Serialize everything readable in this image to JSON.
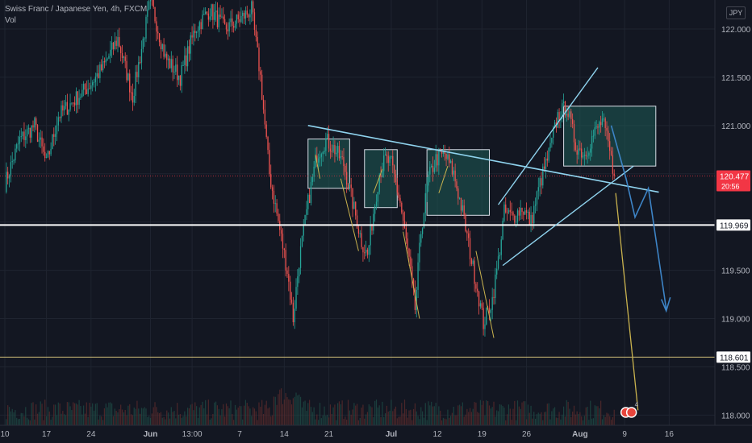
{
  "header": {
    "symbol_line": "Swiss Franc / Japanese Yen, 4h, FXCM",
    "volume_label": "Vol"
  },
  "currency": "JPY",
  "price_badges": {
    "current": {
      "price": "120.477",
      "countdown": "20:56",
      "color": "#f23645"
    },
    "level_white": {
      "price": "119.969"
    },
    "level_yellow": {
      "price": "118.601"
    }
  },
  "colors": {
    "background": "#131722",
    "up": "#26a69a",
    "down": "#ef5350",
    "trendline": "#8fd3ee",
    "zone_fill": "#1e5b55",
    "forecast": "#3d84c6",
    "target_line": "#c9b24e",
    "support": "#ffffff"
  },
  "marker": {
    "text": "4"
  },
  "chart_data": {
    "type": "candlestick",
    "title": "Swiss Franc / Japanese Yen, 4h, FXCM",
    "xlabel": "",
    "ylabel": "",
    "y_axis_ticks": [
      118.0,
      118.5,
      119.0,
      119.5,
      120.0,
      120.5,
      121.0,
      121.5,
      122.0
    ],
    "y_tick_labels": [
      "118.000",
      "118.500",
      "119.000",
      "119.500",
      "120.000",
      "120.500",
      "121.000",
      "121.500",
      "122.000"
    ],
    "ylim": [
      117.92,
      122.3
    ],
    "x_tick_labels": [
      "10",
      "17",
      "24",
      "Jun",
      "13:00",
      "7",
      "14",
      "21",
      "Jul",
      "12",
      "19",
      "26",
      "Aug",
      "9",
      "16"
    ],
    "x_tick_index": [
      0,
      28,
      58,
      98,
      126,
      158,
      188,
      218,
      260,
      291,
      321,
      351,
      387,
      417,
      447
    ],
    "grid": true,
    "legend": "none",
    "horizontal_levels": [
      {
        "price": 119.969,
        "color": "#ffffff",
        "label": "119.969"
      },
      {
        "price": 118.601,
        "color": "#d1c07a",
        "label": "118.601"
      },
      {
        "price": 120.477,
        "color": "#f23645",
        "label": "120.477"
      }
    ],
    "anchors": [
      [
        0,
        120.4
      ],
      [
        10,
        120.85
      ],
      [
        20,
        121.0
      ],
      [
        28,
        120.6
      ],
      [
        36,
        121.1
      ],
      [
        46,
        121.25
      ],
      [
        56,
        121.4
      ],
      [
        66,
        121.6
      ],
      [
        76,
        121.9
      ],
      [
        86,
        121.3
      ],
      [
        98,
        122.3
      ],
      [
        108,
        121.7
      ],
      [
        118,
        121.5
      ],
      [
        128,
        122.0
      ],
      [
        138,
        122.2
      ],
      [
        148,
        122.0
      ],
      [
        158,
        122.1
      ],
      [
        166,
        122.2
      ],
      [
        172,
        121.5
      ],
      [
        178,
        120.5
      ],
      [
        184,
        120.0
      ],
      [
        190,
        119.5
      ],
      [
        194,
        119.0
      ],
      [
        198,
        119.6
      ],
      [
        204,
        120.2
      ],
      [
        210,
        120.7
      ],
      [
        216,
        120.85
      ],
      [
        222,
        120.75
      ],
      [
        228,
        120.6
      ],
      [
        234,
        120.2
      ],
      [
        240,
        119.8
      ],
      [
        244,
        119.65
      ],
      [
        248,
        120.1
      ],
      [
        252,
        120.5
      ],
      [
        256,
        120.65
      ],
      [
        260,
        120.6
      ],
      [
        266,
        120.2
      ],
      [
        272,
        119.6
      ],
      [
        276,
        119.1
      ],
      [
        280,
        119.9
      ],
      [
        285,
        120.45
      ],
      [
        290,
        120.65
      ],
      [
        296,
        120.7
      ],
      [
        302,
        120.5
      ],
      [
        308,
        120.1
      ],
      [
        314,
        119.6
      ],
      [
        318,
        119.3
      ],
      [
        322,
        118.95
      ],
      [
        328,
        119.2
      ],
      [
        332,
        119.6
      ],
      [
        336,
        120.1
      ],
      [
        342,
        120.05
      ],
      [
        348,
        120.15
      ],
      [
        354,
        120.0
      ],
      [
        360,
        120.4
      ],
      [
        366,
        120.7
      ],
      [
        372,
        121.1
      ],
      [
        378,
        121.2
      ],
      [
        384,
        120.8
      ],
      [
        390,
        120.7
      ],
      [
        396,
        120.9
      ],
      [
        402,
        121.05
      ],
      [
        406,
        120.8
      ],
      [
        410,
        120.48
      ]
    ]
  }
}
